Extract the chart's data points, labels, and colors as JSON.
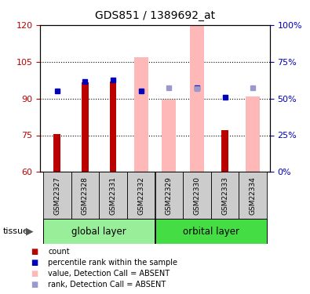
{
  "title": "GDS851 / 1389692_at",
  "samples": [
    "GSM22327",
    "GSM22328",
    "GSM22331",
    "GSM22332",
    "GSM22329",
    "GSM22330",
    "GSM22333",
    "GSM22334"
  ],
  "group_labels": [
    "global layer",
    "orbital layer"
  ],
  "ylim_left": [
    60,
    120
  ],
  "ylim_right": [
    0,
    100
  ],
  "yticks_left": [
    60,
    75,
    90,
    105,
    120
  ],
  "yticks_right": [
    0,
    25,
    50,
    75,
    100
  ],
  "yticklabels_right": [
    "0%",
    "25%",
    "50%",
    "75%",
    "100%"
  ],
  "red_bars": [
    75.5,
    96.5,
    97.0,
    null,
    null,
    null,
    77.0,
    null
  ],
  "pink_bars": [
    null,
    null,
    null,
    107.0,
    89.5,
    119.5,
    null,
    91.0
  ],
  "blue_squares": [
    93.0,
    97.0,
    97.5,
    93.0,
    null,
    94.5,
    90.5,
    null
  ],
  "light_blue_squares": [
    null,
    null,
    null,
    null,
    94.5,
    94.0,
    null,
    94.5
  ],
  "red_bar_width": 0.25,
  "pink_bar_width": 0.5,
  "red_color": "#bb0000",
  "pink_color": "#ffb8b8",
  "blue_color": "#0000bb",
  "light_blue_color": "#9999cc",
  "group1_bg": "#99ee99",
  "group2_bg": "#44dd44",
  "sample_bg": "#cccccc",
  "tissue_label": "tissue",
  "legend_items": [
    {
      "label": "count",
      "color": "#bb0000"
    },
    {
      "label": "percentile rank within the sample",
      "color": "#0000bb"
    },
    {
      "label": "value, Detection Call = ABSENT",
      "color": "#ffb8b8"
    },
    {
      "label": "rank, Detection Call = ABSENT",
      "color": "#9999cc"
    }
  ]
}
